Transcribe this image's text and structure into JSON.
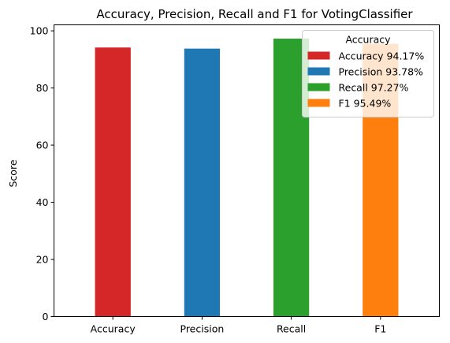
{
  "chart_data": {
    "type": "bar",
    "title": "Accuracy, Precision, Recall and F1 for VotingClassifier",
    "xlabel": "",
    "ylabel": "Score",
    "categories": [
      "Accuracy",
      "Precision",
      "Recall",
      "F1"
    ],
    "values": [
      94.17,
      93.78,
      97.27,
      95.49
    ],
    "colors": [
      "#d62728",
      "#1f77b4",
      "#2ca02c",
      "#ff7f0e"
    ],
    "ylim": [
      0,
      102.1
    ],
    "yticks": [
      "0",
      "20",
      "40",
      "60",
      "80",
      "100"
    ],
    "grid": false,
    "legend": {
      "title": "Accuracy",
      "placement": "top-right",
      "entries": [
        "Accuracy 94.17%",
        "Precision 93.78%",
        "Recall 97.27%",
        "F1 95.49%"
      ]
    }
  }
}
